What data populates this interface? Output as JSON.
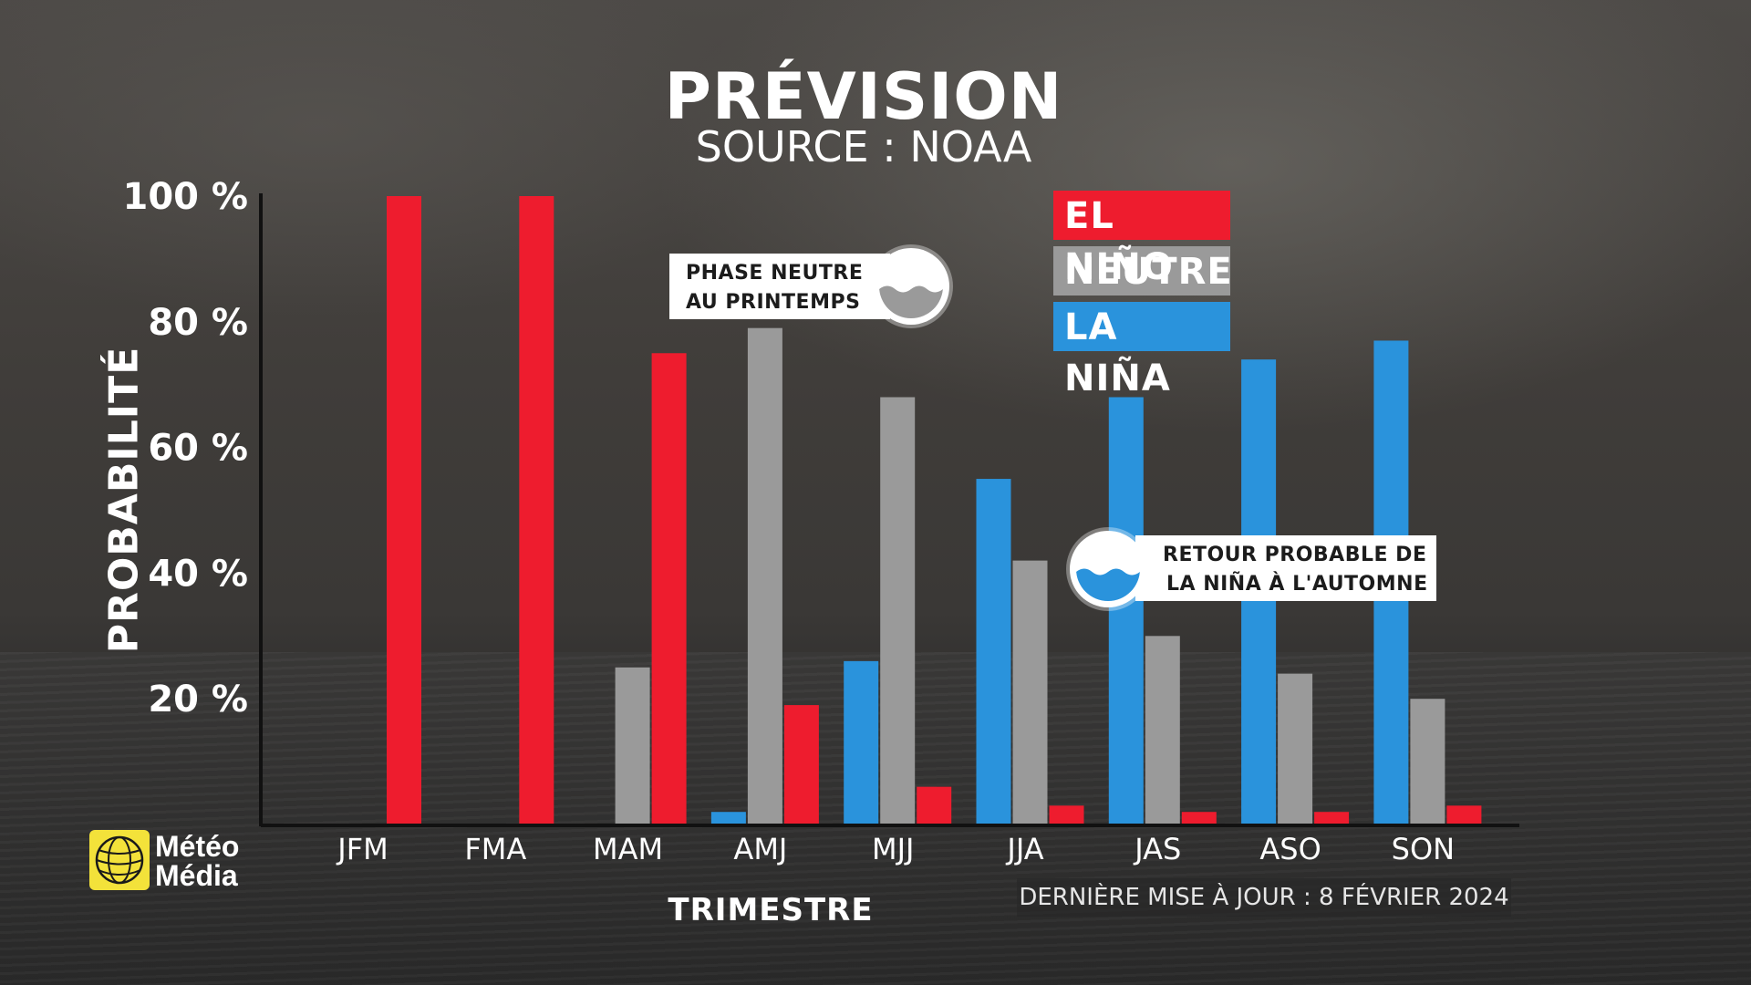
{
  "header": {
    "title": "PRÉVISION",
    "subtitle": "SOURCE : NOAA"
  },
  "chart_data": {
    "type": "bar",
    "title": "PRÉVISION",
    "subtitle": "SOURCE : NOAA",
    "xlabel": "TRIMESTRE",
    "ylabel": "PROBABILITÉ",
    "ylim": [
      0,
      100
    ],
    "yticks": [
      20,
      40,
      60,
      80,
      100
    ],
    "ytick_labels": [
      "20 %",
      "40 %",
      "60 %",
      "80 %",
      "100 %"
    ],
    "categories": [
      "JFM",
      "FMA",
      "MAM",
      "AMJ",
      "MJJ",
      "JJA",
      "JAS",
      "ASO",
      "SON"
    ],
    "series": [
      {
        "name": "LA NIÑA",
        "color": "#2a93dc",
        "values": [
          0,
          0,
          0,
          2,
          26,
          55,
          68,
          74,
          77
        ]
      },
      {
        "name": "NEUTRE",
        "color": "#9a9a9a",
        "values": [
          0,
          0,
          25,
          79,
          68,
          42,
          30,
          24,
          20
        ]
      },
      {
        "name": "EL NIÑO",
        "color": "#ee1c2e",
        "values": [
          100,
          100,
          75,
          19,
          6,
          3,
          2,
          2,
          3
        ]
      }
    ],
    "grid": false,
    "legend_position": "top-right"
  },
  "legend": [
    {
      "label": "EL NIÑO",
      "color": "#ee1c2e"
    },
    {
      "label": "NEUTRE",
      "color": "#9a9a9a"
    },
    {
      "label": "LA NIÑA",
      "color": "#2a93dc"
    }
  ],
  "callouts": {
    "spring": {
      "line1": "PHASE NEUTRE",
      "line2": "AU PRINTEMPS",
      "icon": "water-wave-icon"
    },
    "autumn": {
      "line1": "RETOUR PROBABLE DE",
      "line2": "LA NIÑA À L'AUTOMNE",
      "icon": "water-wave-icon"
    }
  },
  "footer": {
    "updated": "DERNIÈRE MISE À JOUR : 8 FÉVRIER 2024"
  },
  "logo": {
    "line1": "Météo",
    "line2": "Média",
    "color": "#f3e23a"
  }
}
